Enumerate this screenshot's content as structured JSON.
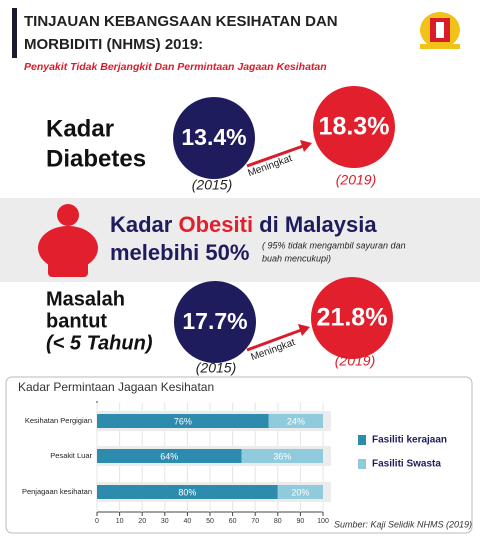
{
  "header": {
    "title_line1": "TINJAUAN KEBANGSAAN KESIHATAN DAN",
    "title_line2": "MORBIDITI (NHMS) 2019:",
    "subtitle": "Penyakit Tidak Berjangkit Dan Permintaan Jagaan Kesihatan"
  },
  "diabetes": {
    "label_line1": "Kadar",
    "label_line2": "Diabetes",
    "value_2015": "13.4%",
    "year_2015": "(2015)",
    "arrow_label": "Meningkat",
    "value_2019": "18.3%",
    "year_2019": "(2019)"
  },
  "obesity": {
    "line1_a": "Kadar ",
    "line1_b": "Obesiti",
    "line1_c": " di Malaysia",
    "line2": "melebihi 50%",
    "note_line1": "( 95% tidak mengambil sayuran dan",
    "note_line2": "buah mencukupi)"
  },
  "stunting": {
    "label_line1": "Masalah",
    "label_line2": "bantut",
    "label_line3": "(< 5 Tahun)",
    "value_2015": "17.7%",
    "year_2015": "(2015)",
    "arrow_label": "Meningkat",
    "value_2019": "21.8%",
    "year_2019": "(2019)"
  },
  "chart_data": {
    "type": "stacked-barh",
    "title": "Kadar Permintaan Jagaan Kesihatan",
    "categories": [
      "Kesihatan Pergigian",
      "Pesakit Luar",
      "Penjagaan kesihatan"
    ],
    "series": [
      {
        "name": "Fasiliti kerajaan",
        "color": "#2d8bad",
        "values": [
          76,
          64,
          80
        ],
        "value_labels": [
          "76%",
          "64%",
          "80%"
        ]
      },
      {
        "name": "Fasiliti Swasta",
        "color": "#8fcbdc",
        "values": [
          24,
          36,
          20
        ],
        "value_labels": [
          "24%",
          "36%",
          "20%"
        ]
      }
    ],
    "xlim": [
      0,
      100
    ],
    "xticks": [
      0,
      10,
      20,
      30,
      40,
      50,
      60,
      70,
      80,
      90,
      100
    ]
  },
  "source": "Sumber: Kaji Selidik NHMS (2019)"
}
